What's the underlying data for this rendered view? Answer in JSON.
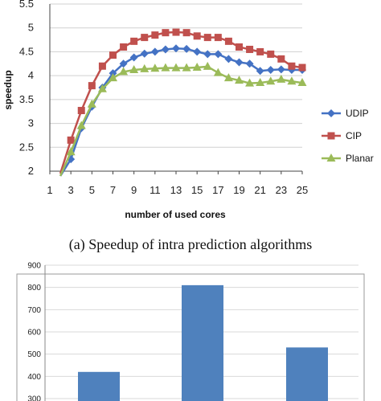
{
  "caption": "(a)   Speedup of intra prediction algorithms",
  "chart_data": [
    {
      "type": "line",
      "title": "",
      "xlabel": "number of used cores",
      "ylabel": "speedup",
      "xlim": [
        1,
        25
      ],
      "ylim": [
        2,
        5.5
      ],
      "x_ticks": [
        "1",
        "3",
        "5",
        "7",
        "9",
        "11",
        "13",
        "15",
        "17",
        "19",
        "21",
        "23",
        "25"
      ],
      "y_ticks": [
        "2",
        "2.5",
        "3",
        "3.5",
        "4",
        "4.5",
        "5",
        "5.5"
      ],
      "grid": "horizontal",
      "legend_position": "right",
      "x": [
        2,
        3,
        4,
        5,
        6,
        7,
        8,
        9,
        10,
        11,
        12,
        13,
        14,
        15,
        16,
        17,
        18,
        19,
        20,
        21,
        22,
        23,
        24,
        25
      ],
      "series": [
        {
          "name": "UDIP",
          "color": "#4472C4",
          "marker": "diamond",
          "values": [
            1.9,
            2.25,
            2.9,
            3.35,
            3.75,
            4.05,
            4.25,
            4.38,
            4.46,
            4.5,
            4.55,
            4.57,
            4.56,
            4.5,
            4.45,
            4.45,
            4.35,
            4.28,
            4.25,
            4.1,
            4.12,
            4.13,
            4.12,
            4.12
          ]
        },
        {
          "name": "CIP",
          "color": "#C0504D",
          "marker": "square",
          "values": [
            1.95,
            2.65,
            3.27,
            3.79,
            4.2,
            4.43,
            4.6,
            4.72,
            4.8,
            4.85,
            4.9,
            4.91,
            4.9,
            4.83,
            4.8,
            4.8,
            4.72,
            4.6,
            4.55,
            4.5,
            4.45,
            4.35,
            4.2,
            4.17
          ]
        },
        {
          "name": "Planar",
          "color": "#9BBB59",
          "marker": "triangle",
          "values": [
            1.9,
            2.4,
            2.95,
            3.4,
            3.72,
            3.95,
            4.08,
            4.12,
            4.14,
            4.15,
            4.16,
            4.16,
            4.16,
            4.17,
            4.19,
            4.06,
            3.95,
            3.9,
            3.84,
            3.85,
            3.88,
            3.92,
            3.88,
            3.85
          ]
        }
      ]
    },
    {
      "type": "bar",
      "title": "",
      "ylim": [
        300,
        900
      ],
      "y_ticks": [
        "300",
        "400",
        "500",
        "600",
        "700",
        "800",
        "900"
      ],
      "grid": "horizontal",
      "categories": [
        "",
        "",
        ""
      ],
      "values": [
        420,
        810,
        530
      ],
      "color": "#4F81BD"
    }
  ]
}
